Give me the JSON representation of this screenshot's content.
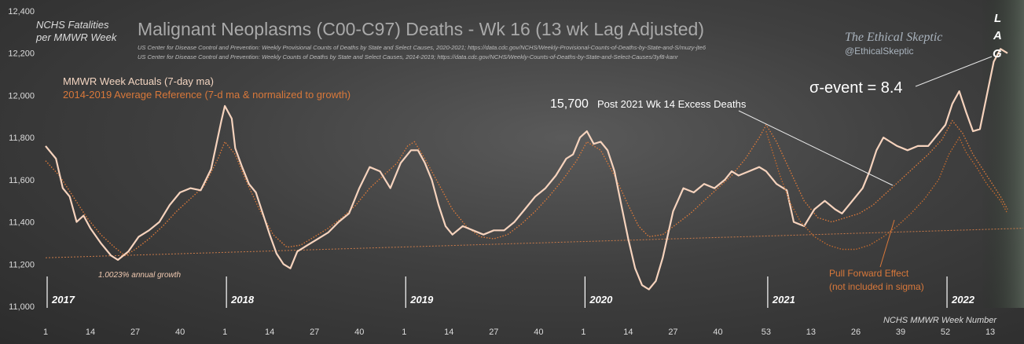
{
  "chart_data": {
    "type": "line",
    "title": "Malignant Neoplasms (C00-C97) Deaths - Wk 16 (13 wk Lag Adjusted)",
    "source_1": "US Center for Disease Control and Prevention: Weekly Provisional Counts of Deaths by State and Select Causes, 2020-2021; https://data.cdc.gov/NCHS/Weekly-Provisional-Counts-of-Deaths-by-State-and-S/muzy-jte6",
    "source_2": "US Center for Disease Control and Prevention: Weekly Counts of Deaths by State and Select Causes, 2014-2019; https://data.cdc.gov/NCHS/Weekly-Counts-of-Deaths-by-State-and-Select-Causes/3yf8-kanr",
    "brand": "The Ethical Skeptic",
    "handle": "@EthicalSkeptic",
    "ylabel_line1": "NCHS Fatalities",
    "ylabel_line2": "per MMWR Week",
    "xlabel": "NCHS MMWR Week Number",
    "ylim": [
      11000,
      12400
    ],
    "yticks": [
      "11,000",
      "11,200",
      "11,400",
      "11,600",
      "11,800",
      "12,000",
      "12,200",
      "12,400"
    ],
    "ytick_values": [
      11000,
      11200,
      11400,
      11600,
      11800,
      12000,
      12200,
      12400
    ],
    "xticks": [
      {
        "i": 1,
        "label": "1"
      },
      {
        "i": 14,
        "label": "14"
      },
      {
        "i": 27,
        "label": "27"
      },
      {
        "i": 40,
        "label": "40"
      },
      {
        "i": 53,
        "label": "1"
      },
      {
        "i": 66,
        "label": "14"
      },
      {
        "i": 79,
        "label": "27"
      },
      {
        "i": 92,
        "label": "40"
      },
      {
        "i": 105,
        "label": "1"
      },
      {
        "i": 118,
        "label": "14"
      },
      {
        "i": 131,
        "label": "27"
      },
      {
        "i": 144,
        "label": "40"
      },
      {
        "i": 157,
        "label": "1"
      },
      {
        "i": 170,
        "label": "14"
      },
      {
        "i": 183,
        "label": "27"
      },
      {
        "i": 196,
        "label": "40"
      },
      {
        "i": 210,
        "label": "53"
      },
      {
        "i": 223,
        "label": "13"
      },
      {
        "i": 236,
        "label": "26"
      },
      {
        "i": 249,
        "label": "39"
      },
      {
        "i": 262,
        "label": "52"
      },
      {
        "i": 275,
        "label": "13"
      }
    ],
    "years": [
      {
        "i": 1,
        "label": "2017"
      },
      {
        "i": 53,
        "label": "2018"
      },
      {
        "i": 105,
        "label": "2019"
      },
      {
        "i": 157,
        "label": "2020"
      },
      {
        "i": 210,
        "label": "2021"
      },
      {
        "i": 262,
        "label": "2022"
      }
    ],
    "x_range": [
      1,
      280
    ],
    "trend": {
      "start": 11230,
      "end": 11370
    },
    "series": [
      {
        "name": "MMWR Week Actuals (7-day ma)",
        "color": "#f6d3bd",
        "points": [
          [
            1,
            11760
          ],
          [
            4,
            11700
          ],
          [
            6,
            11560
          ],
          [
            8,
            11520
          ],
          [
            10,
            11400
          ],
          [
            12,
            11430
          ],
          [
            14,
            11370
          ],
          [
            17,
            11300
          ],
          [
            20,
            11240
          ],
          [
            22,
            11220
          ],
          [
            25,
            11260
          ],
          [
            28,
            11330
          ],
          [
            31,
            11360
          ],
          [
            34,
            11400
          ],
          [
            37,
            11480
          ],
          [
            40,
            11540
          ],
          [
            43,
            11560
          ],
          [
            46,
            11550
          ],
          [
            49,
            11650
          ],
          [
            52,
            11880
          ],
          [
            53,
            11950
          ],
          [
            55,
            11890
          ],
          [
            56,
            11750
          ],
          [
            58,
            11660
          ],
          [
            60,
            11580
          ],
          [
            62,
            11540
          ],
          [
            64,
            11440
          ],
          [
            66,
            11340
          ],
          [
            68,
            11250
          ],
          [
            70,
            11200
          ],
          [
            72,
            11180
          ],
          [
            74,
            11260
          ],
          [
            77,
            11290
          ],
          [
            80,
            11320
          ],
          [
            83,
            11350
          ],
          [
            86,
            11400
          ],
          [
            89,
            11440
          ],
          [
            92,
            11560
          ],
          [
            95,
            11660
          ],
          [
            98,
            11640
          ],
          [
            101,
            11560
          ],
          [
            104,
            11680
          ],
          [
            107,
            11740
          ],
          [
            109,
            11740
          ],
          [
            111,
            11680
          ],
          [
            113,
            11600
          ],
          [
            115,
            11480
          ],
          [
            117,
            11380
          ],
          [
            119,
            11340
          ],
          [
            122,
            11380
          ],
          [
            125,
            11360
          ],
          [
            128,
            11340
          ],
          [
            131,
            11360
          ],
          [
            134,
            11360
          ],
          [
            137,
            11400
          ],
          [
            140,
            11460
          ],
          [
            143,
            11520
          ],
          [
            146,
            11560
          ],
          [
            149,
            11620
          ],
          [
            152,
            11700
          ],
          [
            154,
            11720
          ],
          [
            156,
            11800
          ],
          [
            158,
            11830
          ],
          [
            160,
            11770
          ],
          [
            162,
            11780
          ],
          [
            164,
            11740
          ],
          [
            166,
            11640
          ],
          [
            168,
            11480
          ],
          [
            170,
            11320
          ],
          [
            172,
            11180
          ],
          [
            174,
            11100
          ],
          [
            176,
            11080
          ],
          [
            178,
            11120
          ],
          [
            180,
            11230
          ],
          [
            183,
            11450
          ],
          [
            186,
            11560
          ],
          [
            189,
            11540
          ],
          [
            192,
            11580
          ],
          [
            195,
            11560
          ],
          [
            198,
            11600
          ],
          [
            200,
            11640
          ],
          [
            202,
            11620
          ],
          [
            205,
            11640
          ],
          [
            208,
            11660
          ],
          [
            210,
            11640
          ],
          [
            213,
            11580
          ],
          [
            216,
            11550
          ],
          [
            218,
            11400
          ],
          [
            221,
            11380
          ],
          [
            224,
            11460
          ],
          [
            227,
            11500
          ],
          [
            230,
            11460
          ],
          [
            232,
            11440
          ],
          [
            235,
            11500
          ],
          [
            238,
            11560
          ],
          [
            240,
            11640
          ],
          [
            242,
            11740
          ],
          [
            244,
            11800
          ],
          [
            246,
            11780
          ],
          [
            248,
            11760
          ],
          [
            251,
            11740
          ],
          [
            254,
            11760
          ],
          [
            257,
            11760
          ],
          [
            260,
            11820
          ],
          [
            262,
            11860
          ],
          [
            264,
            11960
          ],
          [
            266,
            12020
          ],
          [
            268,
            11920
          ],
          [
            270,
            11830
          ],
          [
            272,
            11840
          ],
          [
            274,
            12000
          ],
          [
            276,
            12160
          ],
          [
            278,
            12220
          ],
          [
            280,
            12200
          ]
        ]
      },
      {
        "name": "2014-2019  Average Reference (7-d ma & normalized to growth)",
        "color": "#d9783a",
        "points": [
          [
            1,
            11690
          ],
          [
            5,
            11620
          ],
          [
            9,
            11520
          ],
          [
            13,
            11420
          ],
          [
            17,
            11340
          ],
          [
            21,
            11280
          ],
          [
            24,
            11240
          ],
          [
            27,
            11270
          ],
          [
            31,
            11320
          ],
          [
            35,
            11380
          ],
          [
            39,
            11450
          ],
          [
            43,
            11510
          ],
          [
            47,
            11570
          ],
          [
            51,
            11700
          ],
          [
            53,
            11780
          ],
          [
            56,
            11720
          ],
          [
            59,
            11600
          ],
          [
            63,
            11460
          ],
          [
            67,
            11340
          ],
          [
            71,
            11280
          ],
          [
            75,
            11290
          ],
          [
            79,
            11330
          ],
          [
            83,
            11370
          ],
          [
            87,
            11420
          ],
          [
            91,
            11480
          ],
          [
            95,
            11560
          ],
          [
            99,
            11620
          ],
          [
            103,
            11680
          ],
          [
            106,
            11760
          ],
          [
            108,
            11780
          ],
          [
            111,
            11700
          ],
          [
            115,
            11580
          ],
          [
            119,
            11460
          ],
          [
            123,
            11380
          ],
          [
            127,
            11330
          ],
          [
            131,
            11320
          ],
          [
            135,
            11340
          ],
          [
            139,
            11390
          ],
          [
            143,
            11450
          ],
          [
            147,
            11520
          ],
          [
            151,
            11600
          ],
          [
            155,
            11690
          ],
          [
            158,
            11780
          ],
          [
            162,
            11740
          ],
          [
            166,
            11620
          ],
          [
            170,
            11480
          ],
          [
            173,
            11380
          ],
          [
            176,
            11330
          ],
          [
            180,
            11340
          ],
          [
            184,
            11390
          ],
          [
            188,
            11440
          ],
          [
            192,
            11500
          ],
          [
            196,
            11560
          ],
          [
            200,
            11620
          ],
          [
            204,
            11700
          ],
          [
            208,
            11800
          ],
          [
            210,
            11860
          ],
          [
            213,
            11780
          ],
          [
            217,
            11640
          ],
          [
            221,
            11500
          ],
          [
            225,
            11420
          ],
          [
            229,
            11400
          ],
          [
            233,
            11420
          ],
          [
            237,
            11440
          ],
          [
            241,
            11480
          ],
          [
            245,
            11540
          ],
          [
            249,
            11600
          ],
          [
            253,
            11660
          ],
          [
            257,
            11720
          ],
          [
            261,
            11790
          ],
          [
            264,
            11880
          ],
          [
            267,
            11820
          ],
          [
            270,
            11720
          ],
          [
            274,
            11620
          ],
          [
            278,
            11520
          ],
          [
            280,
            11460
          ]
        ]
      },
      {
        "name": "",
        "color": "#c0692f",
        "points": [
          [
            210,
            11830
          ],
          [
            214,
            11620
          ],
          [
            217,
            11490
          ],
          [
            220,
            11400
          ],
          [
            224,
            11330
          ],
          [
            228,
            11290
          ],
          [
            232,
            11270
          ],
          [
            236,
            11270
          ],
          [
            240,
            11290
          ],
          [
            244,
            11330
          ],
          [
            248,
            11380
          ],
          [
            252,
            11440
          ],
          [
            256,
            11510
          ],
          [
            260,
            11600
          ],
          [
            263,
            11720
          ],
          [
            266,
            11800
          ],
          [
            268,
            11730
          ],
          [
            271,
            11660
          ],
          [
            274,
            11580
          ],
          [
            278,
            11500
          ],
          [
            280,
            11440
          ]
        ]
      }
    ],
    "annotations": {
      "sigma": "σ-event = 8.4",
      "excess_value": "15,700",
      "excess_label": "Post 2021 Wk 14 Excess Deaths",
      "pull_forward_1": "Pull Forward Effect",
      "pull_forward_2": "(not included in sigma)",
      "growth": "1.0023% annual growth",
      "lag_l": "L",
      "lag_a": "A",
      "lag_g": "G"
    },
    "grid": false,
    "legend": "top-left"
  }
}
